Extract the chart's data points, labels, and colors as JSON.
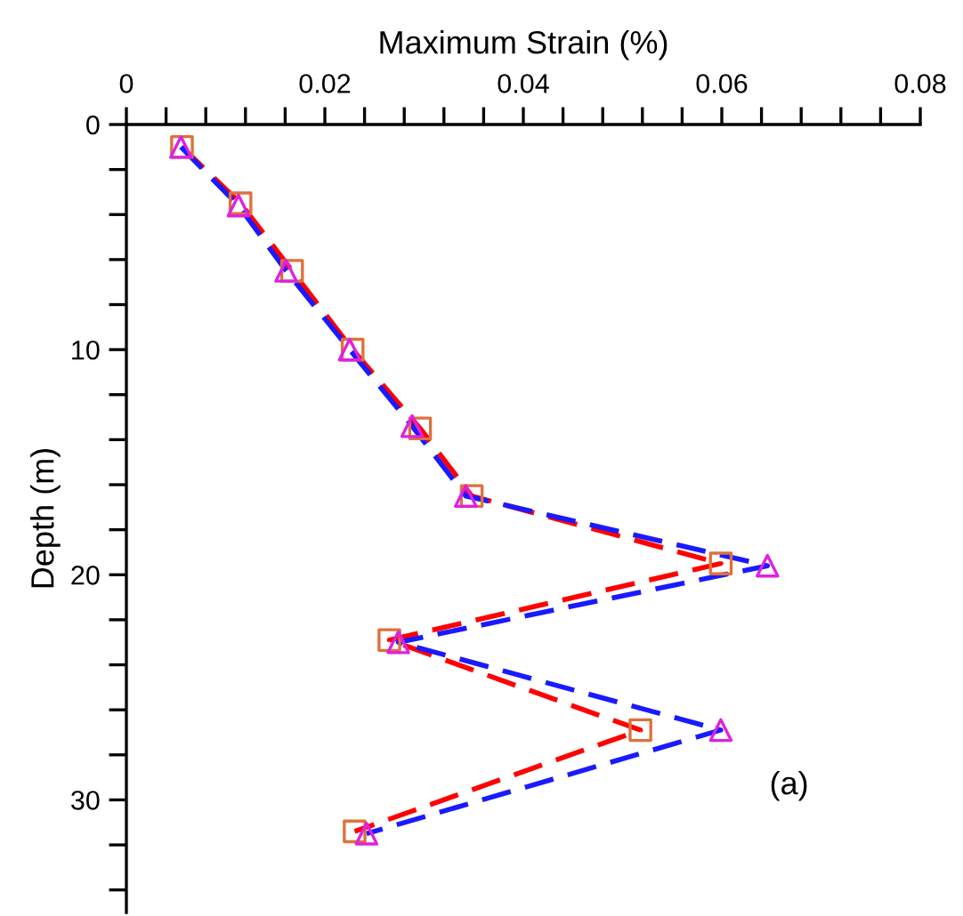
{
  "chart_data": {
    "type": "line",
    "xlabel": "Maximum Strain (%)",
    "ylabel": "Depth (m)",
    "annotations": [
      "(a)"
    ],
    "xlim": [
      0,
      0.08
    ],
    "ylim": [
      35,
      0
    ],
    "xticks": [
      0,
      {
        "value": 0.004,
        "label": null
      },
      {
        "value": 0.008,
        "label": null
      },
      {
        "value": 0.012,
        "label": null
      },
      {
        "value": 0.016,
        "label": null
      },
      0.02,
      {
        "value": 0.024,
        "label": null
      },
      {
        "value": 0.028,
        "label": null
      },
      {
        "value": 0.032,
        "label": null
      },
      {
        "value": 0.036,
        "label": null
      },
      0.04,
      {
        "value": 0.044,
        "label": null
      },
      {
        "value": 0.048,
        "label": null
      },
      {
        "value": 0.052,
        "label": null
      },
      {
        "value": 0.056,
        "label": null
      },
      0.06,
      {
        "value": 0.064,
        "label": null
      },
      {
        "value": 0.068,
        "label": null
      },
      {
        "value": 0.072,
        "label": null
      },
      {
        "value": 0.076,
        "label": null
      },
      0.08
    ],
    "yticks": [
      0,
      {
        "value": 2,
        "label": null
      },
      {
        "value": 4,
        "label": null
      },
      {
        "value": 6,
        "label": null
      },
      {
        "value": 8,
        "label": null
      },
      10,
      {
        "value": 12,
        "label": null
      },
      {
        "value": 14,
        "label": null
      },
      {
        "value": 16,
        "label": null
      },
      {
        "value": 18,
        "label": null
      },
      20,
      {
        "value": 22,
        "label": null
      },
      {
        "value": 24,
        "label": null
      },
      {
        "value": 26,
        "label": null
      },
      {
        "value": 28,
        "label": null
      },
      30,
      {
        "value": 32,
        "label": null
      },
      {
        "value": 34,
        "label": null
      }
    ],
    "grid": false,
    "legend": false,
    "series": [
      {
        "color": "#ff0000",
        "marker": "square",
        "line_style": "dashed",
        "colors": [
          "#e0703a",
          "#e0703a",
          "#e0703a",
          "#e0703a",
          "#e0703a",
          "#e0703a",
          "#e0703a",
          "#e0703a",
          "#e0703a",
          "#e0703a"
        ],
        "x": [
          0.0056,
          0.0115,
          0.0167,
          0.0228,
          0.0296,
          0.0348,
          0.0599,
          0.0265,
          0.0518,
          0.023
        ],
        "values": [
          1.0,
          3.5,
          6.5,
          10.0,
          13.5,
          16.5,
          19.5,
          22.9,
          26.9,
          31.4
        ]
      },
      {
        "color": "#1a1aff",
        "marker": "triangle",
        "line_style": "dashed",
        "colors": [
          "#e020e0",
          "#e020e0",
          "#e020e0",
          "#e020e0",
          "#e020e0",
          "#e020e0",
          "#e020e0",
          "#e020e0",
          "#e020e0",
          "#e020e0"
        ],
        "x": [
          0.0055,
          0.0113,
          0.0161,
          0.0225,
          0.0288,
          0.0342,
          0.0646,
          0.0274,
          0.0599,
          0.0242
        ],
        "values": [
          1.0,
          3.6,
          6.5,
          10.0,
          13.4,
          16.5,
          19.6,
          23.0,
          26.9,
          31.5
        ]
      }
    ]
  }
}
